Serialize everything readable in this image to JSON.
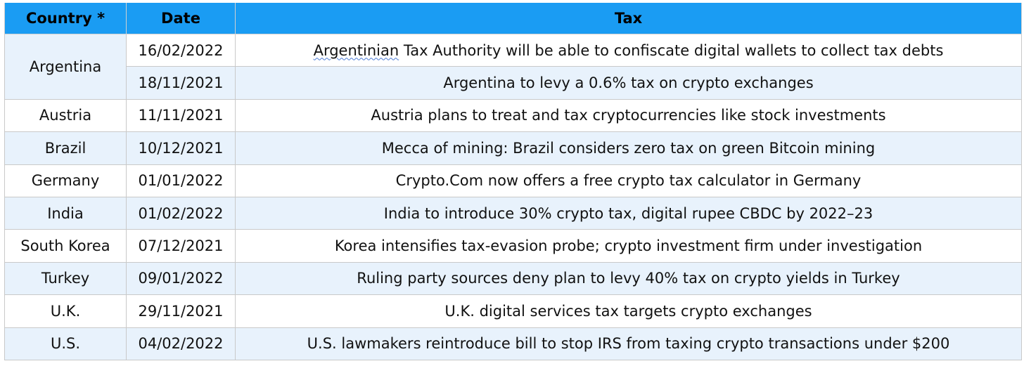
{
  "table": {
    "headers": {
      "country": "Country *",
      "date": "Date",
      "tax": "Tax"
    },
    "argentina": {
      "country": "Argentina",
      "rows": [
        {
          "date": "16/02/2022",
          "tax_first_word": "Argentinian",
          "tax_rest": " Tax Authority will be able to confiscate digital wallets to collect tax debts"
        },
        {
          "date": "18/11/2021",
          "tax": "Argentina to levy a 0.6% tax on crypto exchanges"
        }
      ]
    },
    "rows": [
      {
        "country": "Austria",
        "date": "11/11/2021",
        "tax": "Austria plans to treat and tax cryptocurrencies like stock investments"
      },
      {
        "country": "Brazil",
        "date": "10/12/2021",
        "tax": "Mecca of mining: Brazil considers zero tax on green Bitcoin mining"
      },
      {
        "country": "Germany",
        "date": "01/01/2022",
        "tax": "Crypto.Com now offers a free crypto tax calculator in Germany"
      },
      {
        "country": "India",
        "date": "01/02/2022",
        "tax": "India to introduce 30% crypto tax, digital rupee CBDC by 2022–23"
      },
      {
        "country": "South Korea",
        "date": "07/12/2021",
        "tax": "Korea intensifies tax-evasion probe; crypto investment firm under investigation"
      },
      {
        "country": "Turkey",
        "date": "09/01/2022",
        "tax": "Ruling party sources deny plan to levy 40% tax on crypto yields in Turkey"
      },
      {
        "country": "U.K.",
        "date": "29/11/2021",
        "tax": "U.K. digital services tax targets crypto exchanges"
      },
      {
        "country": "U.S.",
        "date": "04/02/2022",
        "tax": "U.S. lawmakers reintroduce bill to stop IRS from taxing crypto transactions under $200"
      }
    ]
  },
  "colors": {
    "header_bg": "#1a9cf3",
    "alt_row_bg": "#e8f2fc",
    "spellcheck_underline": "#4a7bd6"
  }
}
